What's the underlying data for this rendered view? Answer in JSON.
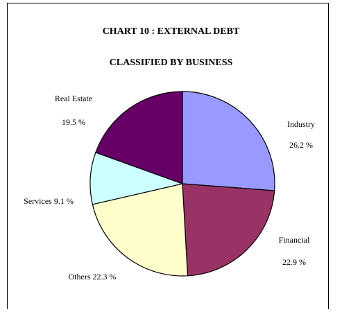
{
  "chart_data": {
    "type": "pie",
    "title": "CHART 10 : EXTERNAL DEBT",
    "subtitle": "CLASSIFIED BY BUSINESS",
    "slices": [
      {
        "label": "Industry",
        "value": 26.2,
        "value_text": "26.2 %",
        "color": "#9999ff"
      },
      {
        "label": "Financial",
        "value": 22.9,
        "value_text": "22.9 %",
        "color": "#993366"
      },
      {
        "label": "Others",
        "value": 22.3,
        "value_text": "22.3 %",
        "color": "#ffffcc"
      },
      {
        "label": "Services",
        "value": 9.1,
        "value_text": "9.1 %",
        "color": "#ccffff"
      },
      {
        "label": "Real Estate",
        "value": 19.5,
        "value_text": "19.5 %",
        "color": "#660066"
      }
    ]
  }
}
